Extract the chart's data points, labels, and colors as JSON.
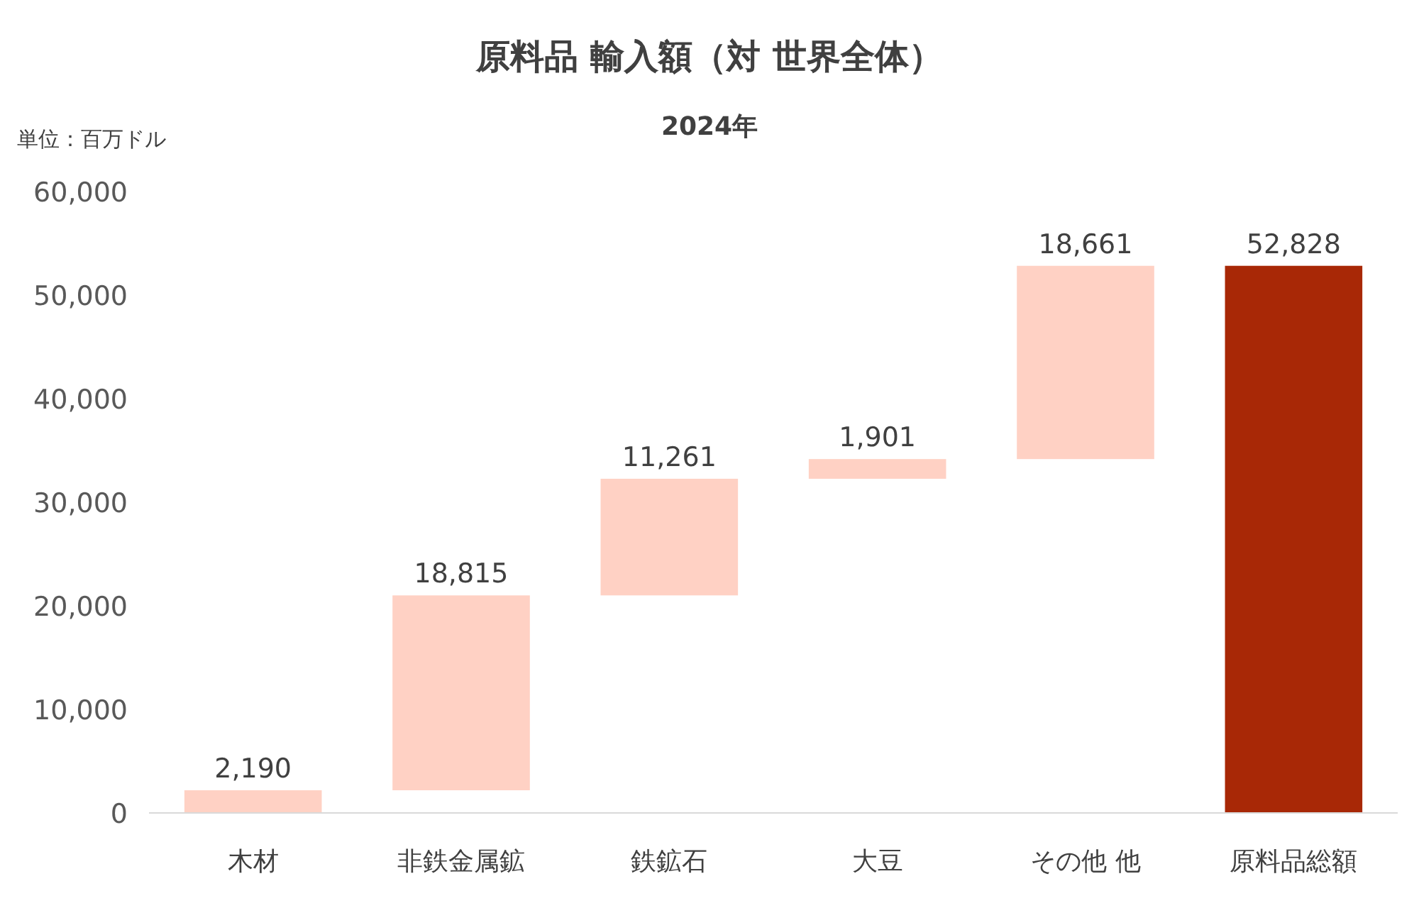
{
  "chart_data": {
    "type": "bar",
    "title": "原料品 輸入額（対 世界全体）",
    "subtitle": "2024年",
    "annotations": [
      "単位：百万ドル"
    ],
    "categories": [
      "木材",
      "非鉄金属鉱",
      "鉄鉱石",
      "大豆",
      "その他 他",
      "原料品総額"
    ],
    "values": [
      2190,
      18815,
      11261,
      1901,
      18661,
      52828
    ],
    "value_labels": [
      "2,190",
      "18,815",
      "11,261",
      "1,901",
      "18,661",
      "52,828"
    ],
    "base": [
      0,
      2190,
      21005,
      32266,
      34167,
      0
    ],
    "colors": [
      "#ffd1c4",
      "#ffd1c4",
      "#ffd1c4",
      "#ffd1c4",
      "#ffd1c4",
      "#a82806"
    ],
    "ylim": [
      0,
      60000
    ],
    "yticks": [
      0,
      {
        "value": 10000,
        "label": "10,000"
      },
      {
        "value": 20000,
        "label": "20,000"
      },
      {
        "value": 30000,
        "label": "30,000"
      },
      {
        "value": 40000,
        "label": "40,000"
      },
      {
        "value": 50000,
        "label": "50,000"
      },
      {
        "value": 60000,
        "label": "60,000"
      }
    ],
    "grid": false
  }
}
